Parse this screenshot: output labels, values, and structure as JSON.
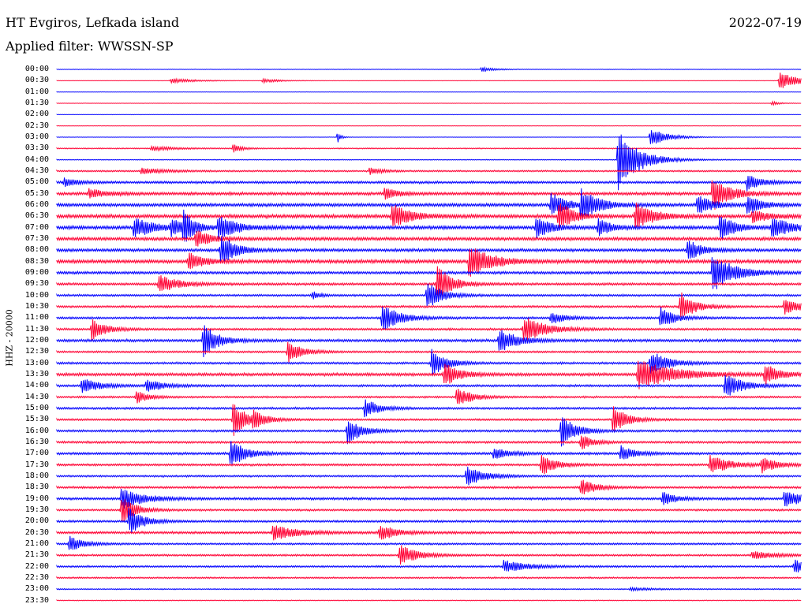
{
  "header": {
    "station": "HT Evgiros, Lefkada island",
    "date": "2022-07-19",
    "filter": "Applied filter: WWSSN-SP"
  },
  "channel_label": "HHZ - 20000",
  "colors": {
    "blue": "#0000ff",
    "red": "#ff0033",
    "text": "#000000",
    "background": "#ffffff"
  },
  "chart_data": {
    "type": "line",
    "title": "HT Evgiros, Lefkada island",
    "subtitle": "Applied filter: WWSSN-SP",
    "date": "2022-07-19",
    "ylabel": "HHZ - 20000",
    "x_range_minutes": [
      0,
      30
    ],
    "tick_labels": [
      "00:00",
      "00:30",
      "01:00",
      "01:30",
      "02:00",
      "02:30",
      "03:00",
      "03:30",
      "04:00",
      "04:30",
      "05:00",
      "05:30",
      "06:00",
      "06:30",
      "07:00",
      "07:30",
      "08:00",
      "08:30",
      "09:00",
      "09:30",
      "10:00",
      "10:30",
      "11:00",
      "11:30",
      "12:00",
      "12:30",
      "13:00",
      "13:30",
      "14:00",
      "14:30",
      "15:00",
      "15:30",
      "16:00",
      "16:30",
      "17:00",
      "17:30",
      "18:00",
      "18:30",
      "19:00",
      "19:30",
      "20:00",
      "20:30",
      "21:00",
      "21:30",
      "22:00",
      "22:30",
      "23:00",
      "23:30"
    ],
    "series_colors": [
      "#0000ff",
      "#ff0033"
    ],
    "noise_level": [
      0.4,
      0.3,
      0.3,
      0.3,
      0.3,
      0.3,
      0.3,
      0.8,
      0.6,
      1.2,
      1.8,
      2.2,
      2.4,
      2.6,
      2.6,
      2.4,
      2.2,
      2.6,
      2.0,
      1.8,
      1.6,
      1.6,
      1.6,
      1.6,
      2.0,
      1.4,
      1.6,
      2.2,
      1.6,
      1.4,
      1.6,
      1.4,
      1.6,
      1.6,
      1.8,
      1.6,
      1.4,
      1.6,
      1.8,
      1.4,
      1.6,
      1.8,
      1.4,
      1.4,
      1.4,
      1.2,
      0.8,
      0.6
    ],
    "events": [
      {
        "trace": 0,
        "minute": 17.1,
        "amplitude": 3,
        "duration": 1.2
      },
      {
        "trace": 1,
        "minute": 4.6,
        "amplitude": 3,
        "duration": 2
      },
      {
        "trace": 1,
        "minute": 8.3,
        "amplitude": 2.5,
        "duration": 1.5
      },
      {
        "trace": 1,
        "minute": 29.1,
        "amplitude": 11,
        "duration": 1.8
      },
      {
        "trace": 3,
        "minute": 28.8,
        "amplitude": 3,
        "duration": 0.6
      },
      {
        "trace": 6,
        "minute": 11.3,
        "amplitude": 8,
        "duration": 0.3
      },
      {
        "trace": 6,
        "minute": 23.9,
        "amplitude": 12,
        "duration": 1.5
      },
      {
        "trace": 7,
        "minute": 3.8,
        "amplitude": 3,
        "duration": 2
      },
      {
        "trace": 7,
        "minute": 7.1,
        "amplitude": 5,
        "duration": 0.8
      },
      {
        "trace": 8,
        "minute": 22.6,
        "amplitude": 40,
        "duration": 1.8
      },
      {
        "trace": 9,
        "minute": 3.4,
        "amplitude": 4,
        "duration": 2
      },
      {
        "trace": 9,
        "minute": 12.6,
        "amplitude": 5,
        "duration": 1
      },
      {
        "trace": 10,
        "minute": 0.3,
        "amplitude": 6,
        "duration": 1
      },
      {
        "trace": 10,
        "minute": 27.8,
        "amplitude": 10,
        "duration": 1.2
      },
      {
        "trace": 11,
        "minute": 1.3,
        "amplitude": 6,
        "duration": 1.5
      },
      {
        "trace": 11,
        "minute": 13.2,
        "amplitude": 8,
        "duration": 1
      },
      {
        "trace": 11,
        "minute": 26.4,
        "amplitude": 22,
        "duration": 1.5
      },
      {
        "trace": 12,
        "minute": 19.9,
        "amplitude": 16,
        "duration": 1.2
      },
      {
        "trace": 12,
        "minute": 21.1,
        "amplitude": 20,
        "duration": 1.5
      },
      {
        "trace": 12,
        "minute": 25.8,
        "amplitude": 14,
        "duration": 1.2
      },
      {
        "trace": 12,
        "minute": 27.8,
        "amplitude": 12,
        "duration": 1.2
      },
      {
        "trace": 13,
        "minute": 13.5,
        "amplitude": 16,
        "duration": 1.5
      },
      {
        "trace": 13,
        "minute": 20.2,
        "amplitude": 20,
        "duration": 1.2
      },
      {
        "trace": 13,
        "minute": 23.3,
        "amplitude": 18,
        "duration": 1.5
      },
      {
        "trace": 13,
        "minute": 28.0,
        "amplitude": 8,
        "duration": 1.5
      },
      {
        "trace": 14,
        "minute": 3.1,
        "amplitude": 14,
        "duration": 1.6
      },
      {
        "trace": 14,
        "minute": 4.6,
        "amplitude": 10,
        "duration": 1.2
      },
      {
        "trace": 14,
        "minute": 5.1,
        "amplitude": 20,
        "duration": 0.8
      },
      {
        "trace": 14,
        "minute": 6.5,
        "amplitude": 14,
        "duration": 1.6
      },
      {
        "trace": 14,
        "minute": 19.3,
        "amplitude": 14,
        "duration": 1.2
      },
      {
        "trace": 14,
        "minute": 21.8,
        "amplitude": 12,
        "duration": 1
      },
      {
        "trace": 14,
        "minute": 26.7,
        "amplitude": 18,
        "duration": 1.2
      },
      {
        "trace": 14,
        "minute": 28.8,
        "amplitude": 14,
        "duration": 1.5
      },
      {
        "trace": 15,
        "minute": 5.6,
        "amplitude": 12,
        "duration": 1.2
      },
      {
        "trace": 16,
        "minute": 6.6,
        "amplitude": 22,
        "duration": 1.2
      },
      {
        "trace": 16,
        "minute": 25.4,
        "amplitude": 14,
        "duration": 1.2
      },
      {
        "trace": 17,
        "minute": 5.3,
        "amplitude": 12,
        "duration": 1.2
      },
      {
        "trace": 17,
        "minute": 16.6,
        "amplitude": 22,
        "duration": 1.8
      },
      {
        "trace": 18,
        "minute": 26.4,
        "amplitude": 26,
        "duration": 1.8
      },
      {
        "trace": 19,
        "minute": 4.1,
        "amplitude": 12,
        "duration": 1.6
      },
      {
        "trace": 19,
        "minute": 15.3,
        "amplitude": 26,
        "duration": 1.2
      },
      {
        "trace": 20,
        "minute": 10.3,
        "amplitude": 5,
        "duration": 0.6
      },
      {
        "trace": 20,
        "minute": 14.9,
        "amplitude": 20,
        "duration": 1.2
      },
      {
        "trace": 21,
        "minute": 25.1,
        "amplitude": 20,
        "duration": 1.2
      },
      {
        "trace": 21,
        "minute": 29.3,
        "amplitude": 10,
        "duration": 1.5
      },
      {
        "trace": 22,
        "minute": 13.1,
        "amplitude": 18,
        "duration": 1.5
      },
      {
        "trace": 22,
        "minute": 19.9,
        "amplitude": 8,
        "duration": 1.2
      },
      {
        "trace": 22,
        "minute": 24.3,
        "amplitude": 14,
        "duration": 1.2
      },
      {
        "trace": 23,
        "minute": 1.4,
        "amplitude": 14,
        "duration": 1.2
      },
      {
        "trace": 23,
        "minute": 18.8,
        "amplitude": 18,
        "duration": 1.8
      },
      {
        "trace": 24,
        "minute": 5.9,
        "amplitude": 22,
        "duration": 1.2
      },
      {
        "trace": 24,
        "minute": 17.8,
        "amplitude": 16,
        "duration": 1.5
      },
      {
        "trace": 25,
        "minute": 9.3,
        "amplitude": 14,
        "duration": 1.2
      },
      {
        "trace": 26,
        "minute": 15.1,
        "amplitude": 18,
        "duration": 1.2
      },
      {
        "trace": 26,
        "minute": 23.9,
        "amplitude": 16,
        "duration": 1.5
      },
      {
        "trace": 27,
        "minute": 15.6,
        "amplitude": 16,
        "duration": 1.2
      },
      {
        "trace": 27,
        "minute": 23.4,
        "amplitude": 20,
        "duration": 3
      },
      {
        "trace": 27,
        "minute": 28.5,
        "amplitude": 14,
        "duration": 1.2
      },
      {
        "trace": 28,
        "minute": 1.0,
        "amplitude": 10,
        "duration": 1.5
      },
      {
        "trace": 28,
        "minute": 3.6,
        "amplitude": 8,
        "duration": 1.5
      },
      {
        "trace": 28,
        "minute": 26.9,
        "amplitude": 16,
        "duration": 1.5
      },
      {
        "trace": 29,
        "minute": 3.2,
        "amplitude": 8,
        "duration": 1
      },
      {
        "trace": 29,
        "minute": 16.1,
        "amplitude": 14,
        "duration": 1.2
      },
      {
        "trace": 30,
        "minute": 12.4,
        "amplitude": 12,
        "duration": 1.2
      },
      {
        "trace": 31,
        "minute": 7.1,
        "amplitude": 22,
        "duration": 1.2
      },
      {
        "trace": 31,
        "minute": 7.9,
        "amplitude": 10,
        "duration": 1
      },
      {
        "trace": 31,
        "minute": 22.4,
        "amplitude": 18,
        "duration": 1.2
      },
      {
        "trace": 32,
        "minute": 11.7,
        "amplitude": 18,
        "duration": 1.2
      },
      {
        "trace": 32,
        "minute": 20.3,
        "amplitude": 22,
        "duration": 1.2
      },
      {
        "trace": 33,
        "minute": 21.1,
        "amplitude": 10,
        "duration": 1
      },
      {
        "trace": 34,
        "minute": 7.0,
        "amplitude": 20,
        "duration": 1.2
      },
      {
        "trace": 34,
        "minute": 17.6,
        "amplitude": 8,
        "duration": 1.2
      },
      {
        "trace": 34,
        "minute": 22.7,
        "amplitude": 10,
        "duration": 1.2
      },
      {
        "trace": 35,
        "minute": 19.5,
        "amplitude": 14,
        "duration": 1.2
      },
      {
        "trace": 35,
        "minute": 26.3,
        "amplitude": 12,
        "duration": 1.8
      },
      {
        "trace": 35,
        "minute": 28.4,
        "amplitude": 10,
        "duration": 1.2
      },
      {
        "trace": 36,
        "minute": 16.5,
        "amplitude": 14,
        "duration": 1.5
      },
      {
        "trace": 37,
        "minute": 21.1,
        "amplitude": 12,
        "duration": 1.2
      },
      {
        "trace": 38,
        "minute": 2.6,
        "amplitude": 14,
        "duration": 1.8
      },
      {
        "trace": 38,
        "minute": 24.4,
        "amplitude": 10,
        "duration": 1
      },
      {
        "trace": 38,
        "minute": 29.3,
        "amplitude": 10,
        "duration": 1.8
      },
      {
        "trace": 39,
        "minute": 2.6,
        "amplitude": 18,
        "duration": 1.2
      },
      {
        "trace": 40,
        "minute": 2.9,
        "amplitude": 18,
        "duration": 1.2
      },
      {
        "trace": 41,
        "minute": 8.7,
        "amplitude": 10,
        "duration": 2
      },
      {
        "trace": 41,
        "minute": 13.0,
        "amplitude": 10,
        "duration": 1.5
      },
      {
        "trace": 42,
        "minute": 0.5,
        "amplitude": 10,
        "duration": 1.2
      },
      {
        "trace": 43,
        "minute": 13.8,
        "amplitude": 14,
        "duration": 1.5
      },
      {
        "trace": 43,
        "minute": 28.0,
        "amplitude": 5,
        "duration": 2
      },
      {
        "trace": 44,
        "minute": 18.0,
        "amplitude": 8,
        "duration": 2
      },
      {
        "trace": 44,
        "minute": 29.7,
        "amplitude": 10,
        "duration": 1
      },
      {
        "trace": 46,
        "minute": 23.1,
        "amplitude": 2,
        "duration": 2
      }
    ]
  }
}
